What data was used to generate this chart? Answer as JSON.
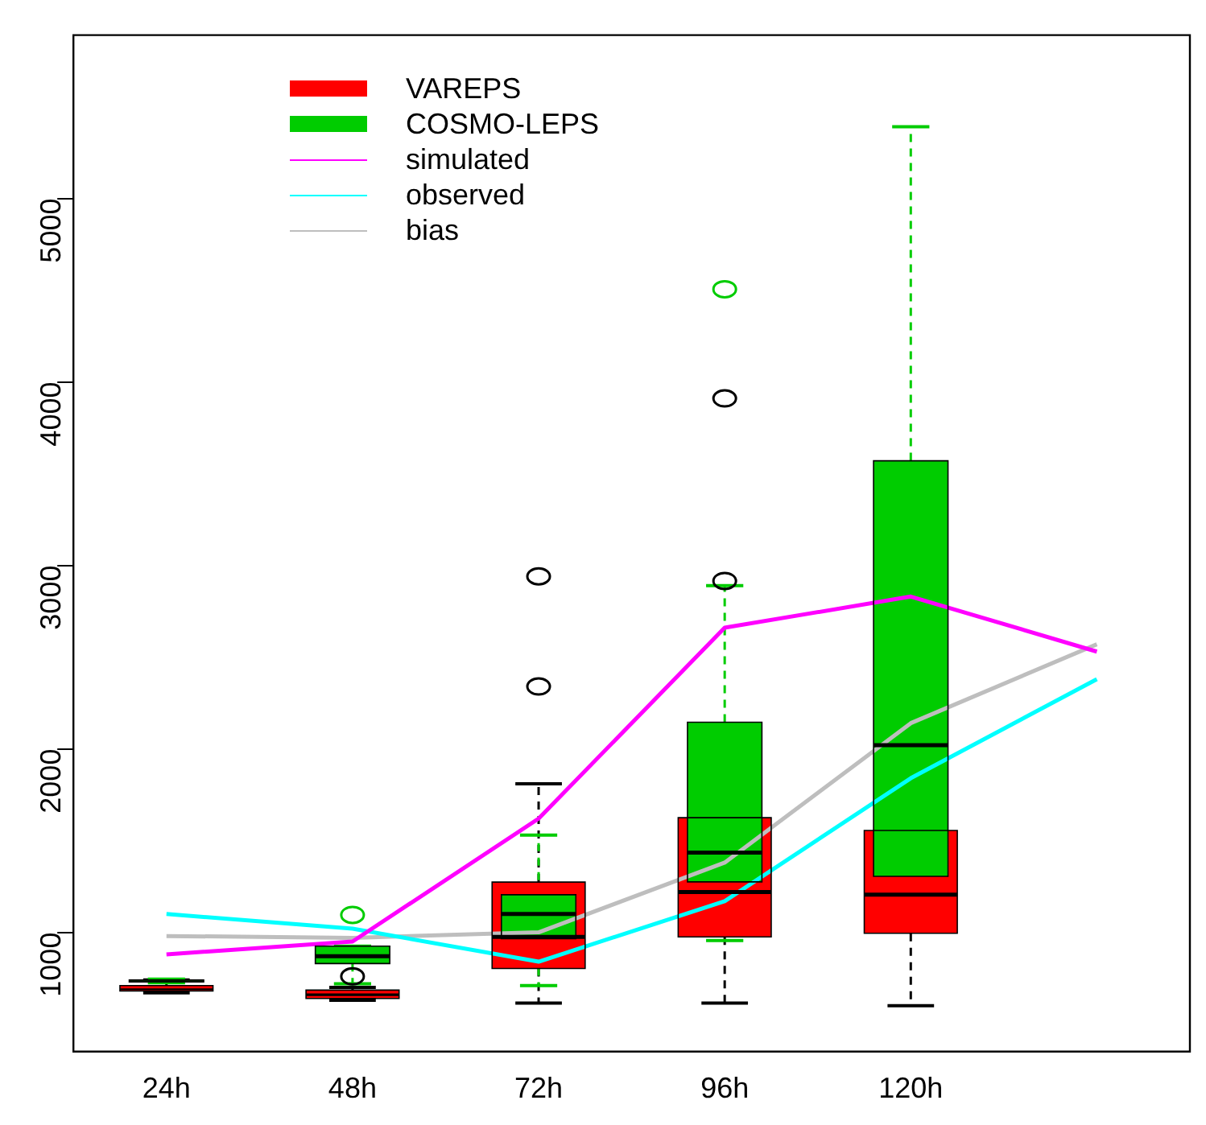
{
  "chart_data": {
    "type": "box",
    "categories": [
      "24h",
      "48h",
      "72h",
      "96h",
      "120h",
      null
    ],
    "series": [
      {
        "name": "VAREPS",
        "color": "#ff0000",
        "boxes": [
          {
            "low": 670,
            "q1": 680,
            "median": 690,
            "q3": 710,
            "high": 740
          },
          {
            "low": 630,
            "q1": 640,
            "median": 660,
            "q3": 685,
            "high": 700,
            "outliers": [
              760
            ]
          },
          {
            "low": 615,
            "q1": 803,
            "median": 975,
            "q3": 1274,
            "high": 1810,
            "outliers": [
              2340,
              2940
            ]
          },
          {
            "low": 615,
            "q1": 975,
            "median": 1220,
            "q3": 1625,
            "high": 1800,
            "outliers": [
              2915,
              3910
            ]
          },
          {
            "low": 600,
            "q1": 995,
            "median": 1205,
            "q3": 1555,
            "high": 1600
          },
          null
        ]
      },
      {
        "name": "COSMO-LEPS",
        "color": "#00cc00",
        "boxes": [
          {
            "low": 725,
            "q1": 730,
            "median": 735,
            "q3": 740,
            "high": 745
          },
          {
            "low": 720,
            "q1": 830,
            "median": 870,
            "q3": 925,
            "high": 925,
            "outliers": [
              1095
            ]
          },
          {
            "low": 710,
            "q1": 965,
            "median": 1100,
            "q3": 1205,
            "high": 1530
          },
          {
            "low": 955,
            "q1": 1275,
            "median": 1435,
            "q3": 2145,
            "high": 2890,
            "outliers": [
              4505
            ]
          },
          {
            "low": 1045,
            "q1": 1305,
            "median": 2020,
            "q3": 3570,
            "high": 5390
          },
          null
        ]
      },
      {
        "name": "simulated",
        "type": "line",
        "color": "#ff00ff",
        "values": [
          880,
          950,
          1620,
          2660,
          2830,
          2530
        ]
      },
      {
        "name": "observed",
        "type": "line",
        "color": "#00ffff",
        "values": [
          1100,
          1020,
          840,
          1170,
          1840,
          2380
        ]
      },
      {
        "name": "bias",
        "type": "line",
        "color": "#bebebe",
        "values": [
          980,
          970,
          1000,
          1380,
          2140,
          2570
        ]
      }
    ],
    "ylim": [
      350,
      5890
    ],
    "yticks": [
      1000,
      2000,
      3000,
      4000,
      5000
    ],
    "grid": false,
    "legend": "top left"
  }
}
